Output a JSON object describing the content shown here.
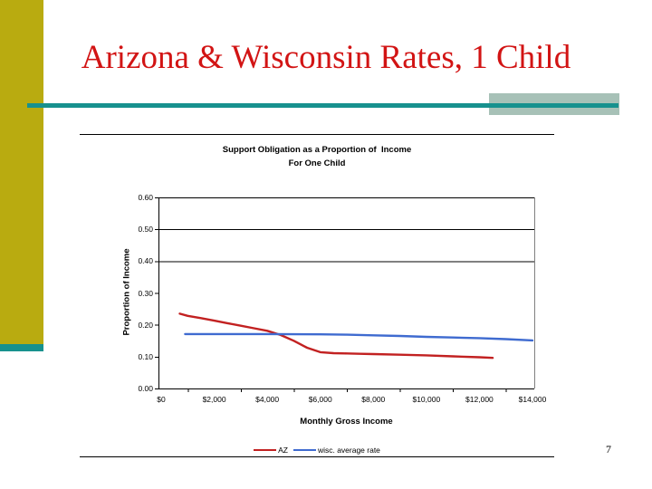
{
  "slide": {
    "title": "Arizona & Wisconsin Rates, 1 Child",
    "page_number": "7"
  },
  "colors": {
    "accent_bar_olive": "#B9AB10",
    "accent_rule_teal": "#17918E",
    "accent_block_sage": "#A7C1B7",
    "slide_title_red": "#D21414",
    "az_series_red": "#C22121",
    "wisc_series_blue": "#3F6BD0",
    "plot_right_border_gray": "#808080"
  },
  "chart_data": {
    "type": "line",
    "title": "Support Obligation as a Proportion of  Income",
    "subtitle": "For One Child",
    "xlabel": "Monthly Gross Income",
    "ylabel": "Proportion of Income",
    "xlim": [
      0,
      14000
    ],
    "ylim": [
      0,
      0.6
    ],
    "x_ticks": [
      "$0",
      "$2,000",
      "$4,000",
      "$6,000",
      "$8,000",
      "$10,000",
      "$12,000",
      "$14,000"
    ],
    "y_ticks": [
      "0.00",
      "0.10",
      "0.20",
      "0.30",
      "0.40",
      "0.50",
      "0.60"
    ],
    "gridlines_at": [
      0.4,
      0.5,
      0.6
    ],
    "grid": "horizontal, only at 0.40/0.50/0.60",
    "legend_position": "bottom",
    "series": [
      {
        "name": "AZ",
        "color": "#C22121",
        "points": [
          [
            700,
            0.235
          ],
          [
            1000,
            0.228
          ],
          [
            1500,
            0.221
          ],
          [
            2000,
            0.213
          ],
          [
            2500,
            0.205
          ],
          [
            3000,
            0.197
          ],
          [
            3500,
            0.189
          ],
          [
            4000,
            0.181
          ],
          [
            4500,
            0.168
          ],
          [
            5000,
            0.15
          ],
          [
            5500,
            0.128
          ],
          [
            6000,
            0.114
          ],
          [
            6500,
            0.111
          ],
          [
            7000,
            0.11
          ],
          [
            7500,
            0.109
          ],
          [
            8000,
            0.108
          ],
          [
            9000,
            0.106
          ],
          [
            10000,
            0.104
          ],
          [
            11000,
            0.101
          ],
          [
            12000,
            0.098
          ],
          [
            12500,
            0.096
          ]
        ]
      },
      {
        "name": "wisc. average rate",
        "color": "#3F6BD0",
        "points": [
          [
            900,
            0.171
          ],
          [
            2000,
            0.171
          ],
          [
            4000,
            0.171
          ],
          [
            6000,
            0.17
          ],
          [
            7000,
            0.169
          ],
          [
            8000,
            0.167
          ],
          [
            9000,
            0.165
          ],
          [
            10000,
            0.162
          ],
          [
            11000,
            0.16
          ],
          [
            12000,
            0.158
          ],
          [
            13000,
            0.155
          ],
          [
            14000,
            0.151
          ]
        ]
      }
    ]
  }
}
